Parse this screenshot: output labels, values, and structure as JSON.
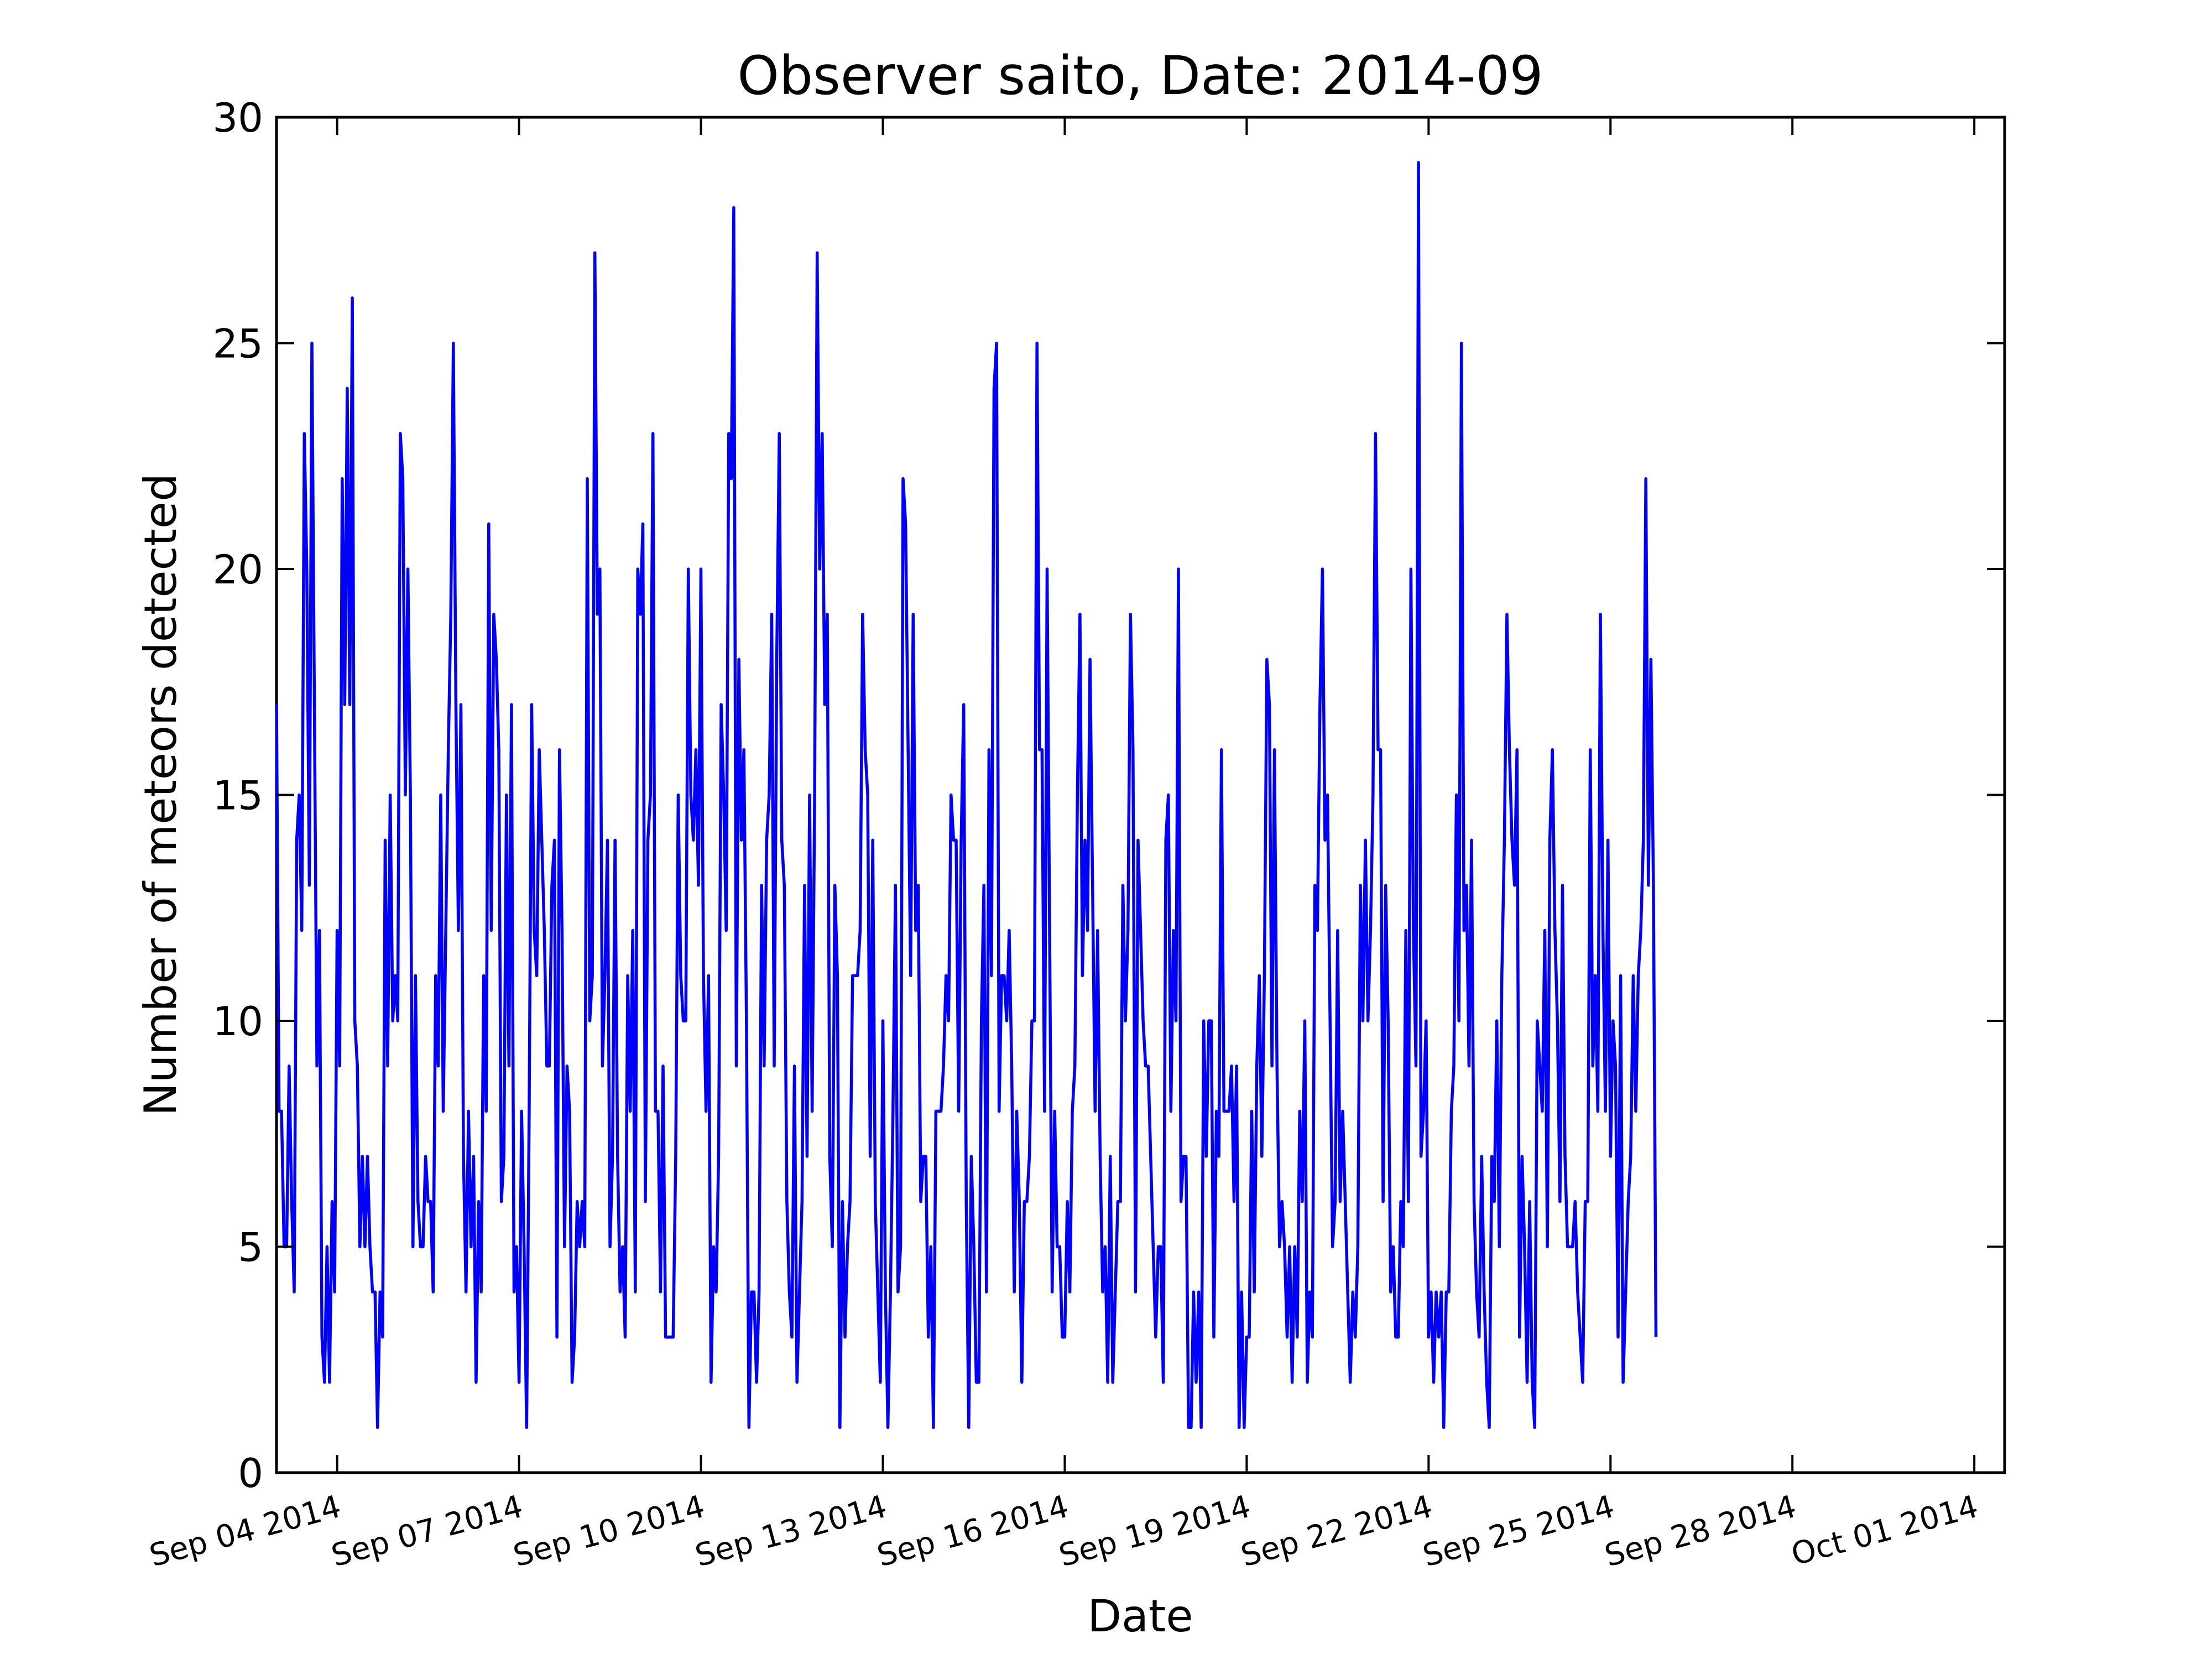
{
  "chart_data": {
    "type": "line",
    "title": "Observer saito, Date: 2014-09",
    "xlabel": "Date",
    "ylabel": "Number of meteors detected",
    "ylim": [
      0,
      30
    ],
    "xlim": [
      "2014-09-03T00:00",
      "2014-10-01T12:00"
    ],
    "yticks": [
      0,
      5,
      10,
      15,
      20,
      25,
      30
    ],
    "yticklabels": [
      "0",
      "5",
      "10",
      "15",
      "20",
      "25",
      "30"
    ],
    "xticks": [
      "2014-09-04",
      "2014-09-07",
      "2014-09-10",
      "2014-09-13",
      "2014-09-16",
      "2014-09-19",
      "2014-09-22",
      "2014-09-25",
      "2014-09-28",
      "2014-10-01"
    ],
    "xticklabels": [
      "Sep 04 2014",
      "Sep 07 2014",
      "Sep 10 2014",
      "Sep 13 2014",
      "Sep 16 2014",
      "Sep 19 2014",
      "Sep 22 2014",
      "Sep 25 2014",
      "Sep 28 2014",
      "Oct 01 2014"
    ],
    "grid": false,
    "legend": "none",
    "series": [
      {
        "color": "#0000ff",
        "start": "2014-09-03T00:00",
        "interval_hours": 1,
        "values": [
          17,
          8,
          8,
          5,
          5,
          9,
          6,
          4,
          14,
          15,
          12,
          23,
          20,
          13,
          25,
          17,
          9,
          12,
          3,
          2,
          5,
          2,
          6,
          4,
          12,
          9,
          22,
          17,
          24,
          17,
          26,
          10,
          9,
          5,
          7,
          5,
          7,
          5,
          4,
          4,
          1,
          4,
          3,
          14,
          9,
          15,
          10,
          11,
          10,
          23,
          22,
          15,
          20,
          15,
          5,
          11,
          6,
          5,
          5,
          7,
          6,
          6,
          4,
          11,
          9,
          15,
          8,
          12,
          16,
          19,
          25,
          17,
          12,
          17,
          7,
          4,
          8,
          5,
          7,
          2,
          6,
          4,
          11,
          8,
          21,
          12,
          19,
          18,
          16,
          6,
          7,
          15,
          9,
          17,
          4,
          5,
          2,
          8,
          5,
          1,
          8,
          17,
          12,
          11,
          16,
          14,
          12,
          9,
          9,
          13,
          14,
          3,
          16,
          12,
          5,
          9,
          8,
          2,
          3,
          6,
          5,
          6,
          5,
          22,
          10,
          11,
          27,
          19,
          20,
          9,
          11,
          14,
          5,
          7,
          14,
          7,
          4,
          5,
          3,
          11,
          8,
          12,
          4,
          20,
          19,
          21,
          6,
          14,
          15,
          23,
          8,
          8,
          4,
          9,
          3,
          3,
          3,
          3,
          7,
          15,
          11,
          10,
          10,
          20,
          15,
          14,
          16,
          13,
          20,
          11,
          8,
          11,
          2,
          5,
          4,
          7,
          17,
          15,
          12,
          23,
          22,
          28,
          9,
          18,
          14,
          16,
          10,
          1,
          4,
          4,
          2,
          4,
          13,
          9,
          14,
          15,
          19,
          9,
          18,
          23,
          14,
          13,
          6,
          4,
          3,
          9,
          2,
          4,
          6,
          13,
          7,
          15,
          8,
          15,
          27,
          20,
          23,
          17,
          19,
          7,
          5,
          13,
          11,
          1,
          6,
          3,
          5,
          6,
          11,
          11,
          11,
          12,
          19,
          16,
          15,
          7,
          14,
          6,
          4,
          2,
          10,
          4,
          1,
          4,
          8,
          13,
          4,
          5,
          22,
          21,
          16,
          11,
          19,
          12,
          13,
          6,
          7,
          7,
          3,
          5,
          1,
          8,
          8,
          8,
          9,
          11,
          10,
          15,
          14,
          14,
          8,
          14,
          17,
          6,
          1,
          7,
          5,
          2,
          2,
          10,
          13,
          4,
          16,
          11,
          24,
          25,
          8,
          11,
          11,
          10,
          12,
          9,
          4,
          8,
          6,
          2,
          6,
          6,
          7,
          10,
          10,
          25,
          16,
          16,
          8,
          20,
          12,
          4,
          8,
          5,
          5,
          3,
          3,
          6,
          4,
          8,
          9,
          15,
          19,
          11,
          14,
          12,
          18,
          13,
          8,
          12,
          7,
          4,
          5,
          2,
          7,
          2,
          4,
          6,
          6,
          13,
          10,
          12,
          19,
          16,
          4,
          14,
          12,
          10,
          9,
          9,
          7,
          5,
          3,
          5,
          5,
          2,
          14,
          15,
          8,
          12,
          10,
          20,
          6,
          7,
          7,
          1,
          1,
          4,
          2,
          4,
          1,
          10,
          7,
          10,
          10,
          3,
          8,
          7,
          16,
          8,
          8,
          8,
          9,
          6,
          9,
          1,
          4,
          1,
          3,
          3,
          8,
          4,
          9,
          11,
          7,
          11,
          18,
          17,
          9,
          16,
          9,
          5,
          6,
          5,
          3,
          5,
          2,
          5,
          3,
          8,
          6,
          10,
          2,
          4,
          3,
          13,
          12,
          17,
          20,
          14,
          15,
          10,
          5,
          6,
          12,
          6,
          8,
          6,
          4,
          2,
          4,
          3,
          5,
          13,
          10,
          14,
          10,
          12,
          15,
          23,
          16,
          16,
          6,
          13,
          10,
          4,
          5,
          3,
          3,
          6,
          5,
          12,
          6,
          20,
          12,
          9,
          29,
          7,
          8,
          10,
          3,
          4,
          2,
          4,
          3,
          4,
          1,
          4,
          4,
          8,
          9,
          15,
          10,
          25,
          12,
          13,
          9,
          14,
          6,
          4,
          3,
          7,
          4,
          2,
          1,
          7,
          6,
          10,
          5,
          11,
          14,
          19,
          16,
          14,
          13,
          16,
          3,
          7,
          5,
          2,
          6,
          2,
          1,
          10,
          9,
          8,
          12,
          5,
          14,
          16,
          12,
          10,
          6,
          13,
          7,
          5,
          5,
          5,
          6,
          4,
          3,
          2,
          6,
          6,
          16,
          9,
          11,
          8,
          19,
          12,
          8,
          14,
          7,
          10,
          9,
          3,
          11,
          2,
          4,
          6,
          7,
          11,
          8,
          11,
          12,
          14,
          22,
          13,
          18,
          13,
          3
        ]
      }
    ]
  }
}
